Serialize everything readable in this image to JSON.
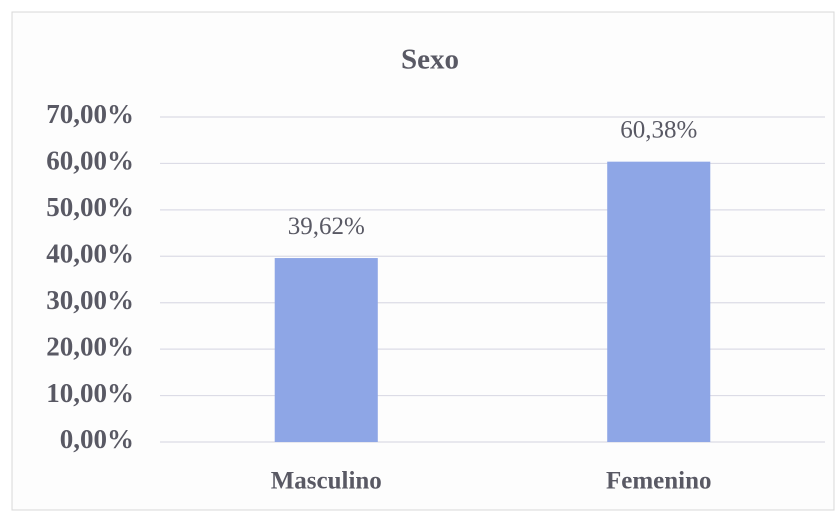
{
  "chart_data": {
    "type": "bar",
    "title": "Sexo",
    "categories": [
      "Masculino",
      "Femenino"
    ],
    "values": [
      39.62,
      60.38
    ],
    "value_labels": [
      "39,62%",
      "60,38%"
    ],
    "color": "#8ea6e6",
    "ylim": [
      0,
      70
    ],
    "yticks": [
      {
        "value": 0,
        "label": "0,00%"
      },
      {
        "value": 10,
        "label": "10,00%"
      },
      {
        "value": 20,
        "label": "20,00%"
      },
      {
        "value": 30,
        "label": "30,00%"
      },
      {
        "value": 40,
        "label": "40,00%"
      },
      {
        "value": 50,
        "label": "50,00%"
      },
      {
        "value": 60,
        "label": "60,00%"
      },
      {
        "value": 70,
        "label": "70,00%"
      }
    ],
    "grid": true
  }
}
